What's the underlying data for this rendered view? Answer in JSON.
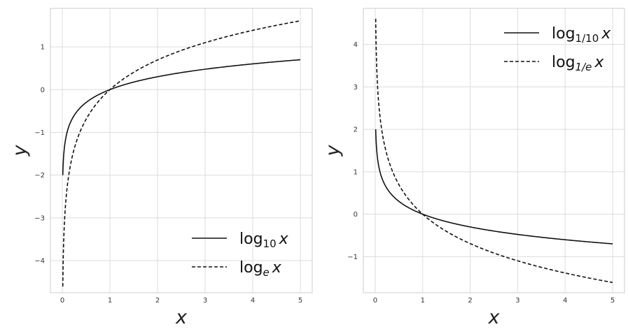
{
  "chart_data": [
    {
      "type": "line",
      "xlabel": "x",
      "ylabel": "y",
      "xlim": [
        -0.25,
        5.25
      ],
      "ylim": [
        -4.75,
        1.9
      ],
      "xticks": [
        0,
        1,
        2,
        3,
        4,
        5
      ],
      "yticks": [
        -4,
        -3,
        -2,
        -1,
        0,
        1
      ],
      "xtick_labels": [
        "0",
        "1",
        "2",
        "3",
        "4",
        "5"
      ],
      "ytick_labels": [
        "−4",
        "−3",
        "−2",
        "−1",
        "0",
        "1"
      ],
      "grid": true,
      "legend_position": "lower-right",
      "x_domain": [
        0.01,
        5
      ],
      "series": [
        {
          "name_main": "log",
          "name_sub": "10",
          "name_tail": "x",
          "base": 10,
          "style": "solid",
          "color": "#111111"
        },
        {
          "name_main": "log",
          "name_sub": "e",
          "name_tail": "x",
          "base": 2.718281828,
          "style": "dashed",
          "color": "#111111"
        }
      ]
    },
    {
      "type": "line",
      "xlabel": "x",
      "ylabel": "y",
      "xlim": [
        -0.25,
        5.25
      ],
      "ylim": [
        -1.85,
        4.85
      ],
      "xticks": [
        0,
        1,
        2,
        3,
        4,
        5
      ],
      "yticks": [
        -1,
        0,
        1,
        2,
        3,
        4
      ],
      "xtick_labels": [
        "0",
        "1",
        "2",
        "3",
        "4",
        "5"
      ],
      "ytick_labels": [
        "−1",
        "0",
        "1",
        "2",
        "3",
        "4"
      ],
      "grid": true,
      "legend_position": "upper-right",
      "x_domain": [
        0.01,
        5
      ],
      "series": [
        {
          "name_main": "log",
          "name_sub": "1/10",
          "name_tail": "x",
          "base": 0.1,
          "style": "solid",
          "color": "#111111"
        },
        {
          "name_main": "log",
          "name_sub": "1/e",
          "name_tail": "x",
          "base": 0.367879441,
          "style": "dashed",
          "color": "#111111"
        }
      ]
    }
  ]
}
